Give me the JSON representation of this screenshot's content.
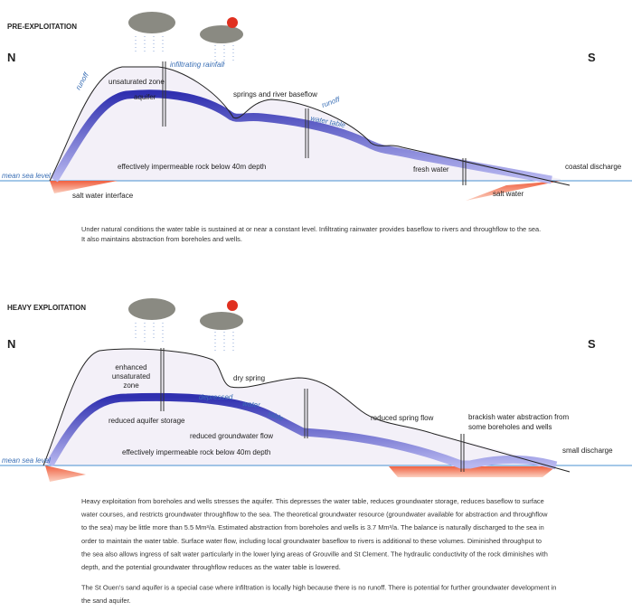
{
  "sections": [
    {
      "title": "PRE-EXPLOITATION",
      "north": "N",
      "south": "S",
      "labels": [
        "runoff",
        "unsaturated zone",
        "infiltrating rainfall",
        "aquifer",
        "springs and river baseflow",
        "runoff",
        "water table",
        "effectively impermeable rock below 40m depth",
        "fresh water",
        "coastal discharge",
        "mean sea level",
        "salt water interface",
        "salt water"
      ],
      "caption": [
        "Under natural conditions the water table is sustained at or near a constant level. Infiltrating rainwater provides baseflow to rivers and throughflow to the sea.",
        "It also maintains abstraction from boreholes and wells."
      ]
    },
    {
      "title": "HEAVY EXPLOITATION",
      "north": "N",
      "south": "S",
      "labels": [
        "enhanced",
        "unsaturated",
        "zone",
        "dry spring",
        "depressed",
        "water",
        "table",
        "reduced aquifer storage",
        "reduced groundwater flow",
        "reduced spring flow",
        "brackish water abstraction from",
        "some boreholes and wells",
        "effectively impermeable rock below 40m depth",
        "small discharge",
        "mean sea level"
      ],
      "caption": [
        "Heavy exploitation from boreholes and wells stresses the aquifer. This depresses the water table, reduces groundwater storage, reduces baseflow to surface",
        "water courses, and restricts groundwater throughflow to the sea. The theoretical groundwater resource (groundwater available for abstraction and throughflow",
        "to the sea) may be little more than 5.5 Mm³/a. Estimated abstraction from boreholes and wells is 3.7 Mm³/a. The balance is naturally discharged to the sea in",
        "order to maintain the water table. Surface water flow, including local groundwater baseflow to rivers is additional to these volumes. Diminished throughput to",
        "the sea also allows ingress of salt water particularly in the lower lying areas of Grouville and St Clement. The hydraulic conductivity of the rock diminishes with",
        "depth, and the potential groundwater throughflow reduces as the water table is lowered.",
        "The St Ouen's sand aquifer is a special case where infiltration is locally high because there is no runoff. There is potential for further groundwater development in",
        "the sand aquifer."
      ]
    }
  ]
}
